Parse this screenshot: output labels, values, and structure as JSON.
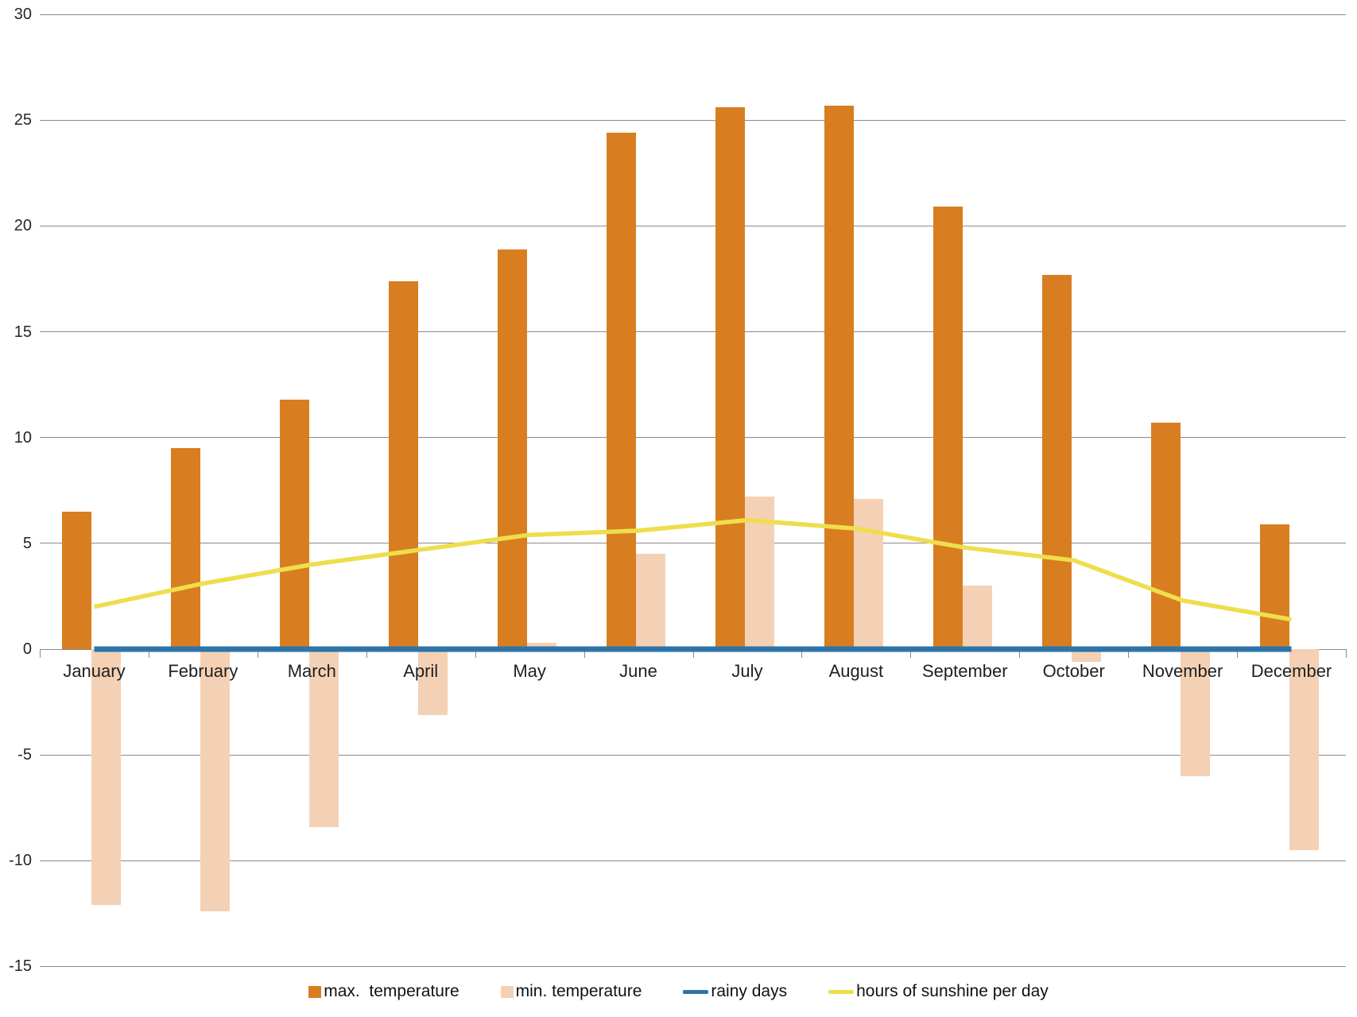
{
  "chart_data": {
    "type": "combo",
    "categories": [
      "January",
      "February",
      "March",
      "April",
      "May",
      "June",
      "July",
      "August",
      "September",
      "October",
      "November",
      "December"
    ],
    "series": [
      {
        "name": "max.  temperature",
        "type": "bar",
        "color": "#D87E20",
        "values": [
          6.5,
          9.5,
          11.8,
          17.4,
          18.9,
          24.4,
          25.6,
          25.7,
          20.9,
          17.7,
          10.7,
          5.9
        ]
      },
      {
        "name": "min. temperature",
        "type": "bar",
        "color": "#F4D1B4",
        "values": [
          -12.1,
          -12.4,
          -8.4,
          -3.1,
          0.3,
          4.5,
          7.2,
          7.1,
          3.0,
          -0.6,
          -6.0,
          -9.5
        ]
      },
      {
        "name": "rainy days",
        "type": "line",
        "color": "#2E74A8",
        "values": [
          0,
          0,
          0,
          0,
          0,
          0,
          0,
          0,
          0,
          0,
          0,
          0
        ]
      },
      {
        "name": "hours of sunshine per day",
        "type": "line",
        "color": "#EEDE4D",
        "values": [
          2.0,
          3.1,
          4.0,
          4.7,
          5.4,
          5.6,
          6.1,
          5.7,
          4.8,
          4.2,
          2.3,
          1.4
        ]
      }
    ],
    "ylim": [
      -15,
      30
    ],
    "yticks": [
      30,
      25,
      20,
      15,
      10,
      5,
      0,
      -5,
      -10,
      -15
    ],
    "grid": true,
    "legend_position": "bottom",
    "title": "",
    "xlabel": "",
    "ylabel": "",
    "grid_color": "#8a8a8a"
  }
}
